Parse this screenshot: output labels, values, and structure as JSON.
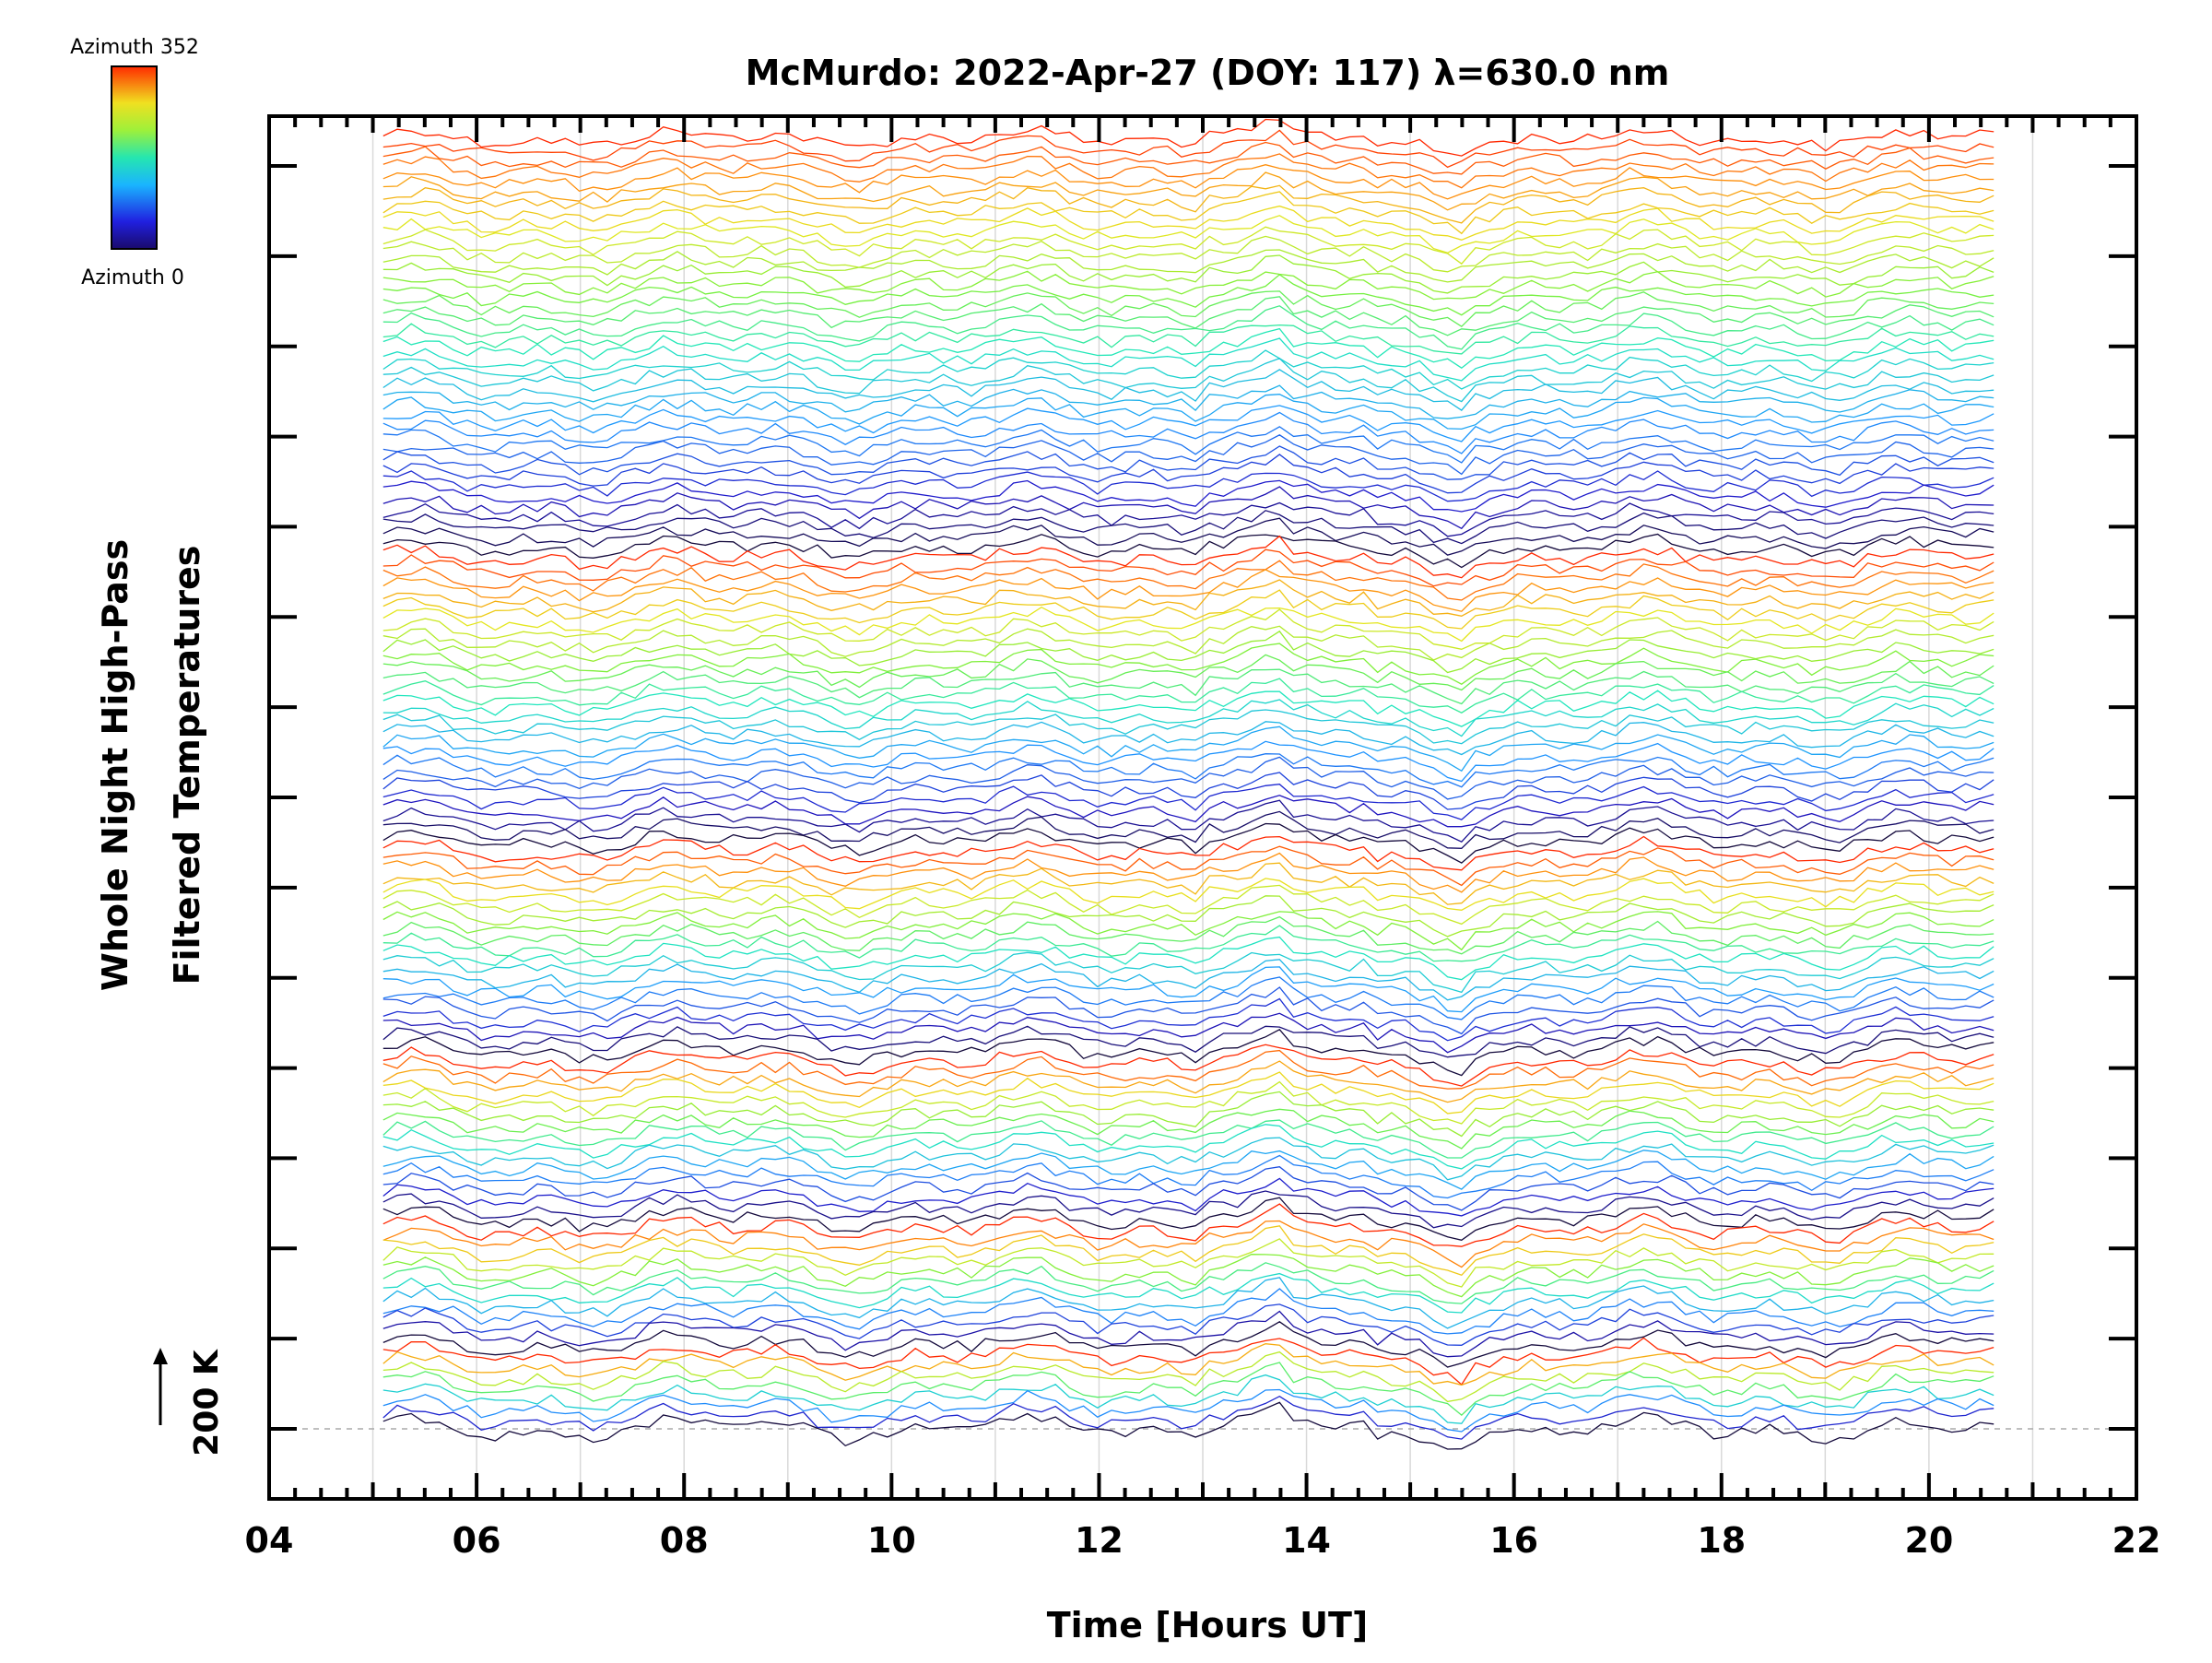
{
  "chart_data": {
    "type": "line",
    "title": "McMurdo: 2022-Apr-27 (DOY: 117) λ=630.0 nm",
    "xlabel": "Time [Hours UT]",
    "ylabel_line1": "Whole Night High-Pass",
    "ylabel_line2": "Filtered Temperatures",
    "xlim": [
      4,
      22
    ],
    "x_ticks": [
      "04",
      "06",
      "08",
      "10",
      "12",
      "14",
      "16",
      "18",
      "20",
      "22"
    ],
    "x_tick_values": [
      4,
      6,
      8,
      10,
      12,
      14,
      16,
      18,
      20,
      22
    ],
    "scale_label": "200 K",
    "scale_arrow": "↑",
    "data_start_hour": 5.1,
    "data_end_hour": 20.75,
    "colorbar": {
      "top_label": "Azimuth 352",
      "bottom_label": "Azimuth 0",
      "colormap": "rainbow",
      "min": 0,
      "max": 352
    },
    "zenith_groups": 6,
    "azimuth_steps_per_group": [
      40,
      28,
      20,
      16,
      12,
      8
    ],
    "grid": "vertical hourly lines",
    "colors": {
      "axis": "#000000",
      "grid": "#d9d9d9",
      "baseline": "#aaaaaa"
    }
  }
}
